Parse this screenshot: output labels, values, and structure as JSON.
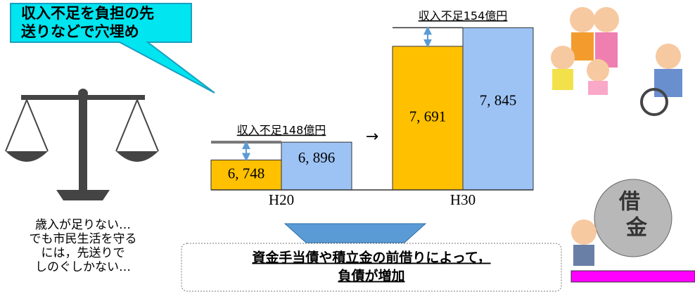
{
  "chart_data": {
    "type": "bar",
    "categories": [
      "H20",
      "H30"
    ],
    "series": [
      {
        "color": "#ffc000",
        "values": [
          6748,
          7691
        ],
        "value_labels": [
          "6, 748",
          "7, 691"
        ]
      },
      {
        "color": "#9dc3f5",
        "values": [
          6896,
          7845
        ],
        "value_labels": [
          "6, 896",
          "7, 845"
        ]
      }
    ],
    "ylim": [
      6500,
      7900
    ],
    "annotations": [
      "収入不足148億円",
      "収入不足154億円"
    ],
    "arrow": "→"
  },
  "callout": {
    "lines": [
      "収入不足を負担の先",
      "送りなどで穴埋め"
    ]
  },
  "note": {
    "lines": [
      "歳入が足りない…",
      "でも市民生活を守る",
      "には，先送りで",
      "しのぐしかない…"
    ]
  },
  "conclusion": {
    "lines": [
      "資金手当債や積立金の前借りによって，",
      "負債が増加"
    ]
  },
  "illustration_text": [
    "借",
    "金"
  ]
}
